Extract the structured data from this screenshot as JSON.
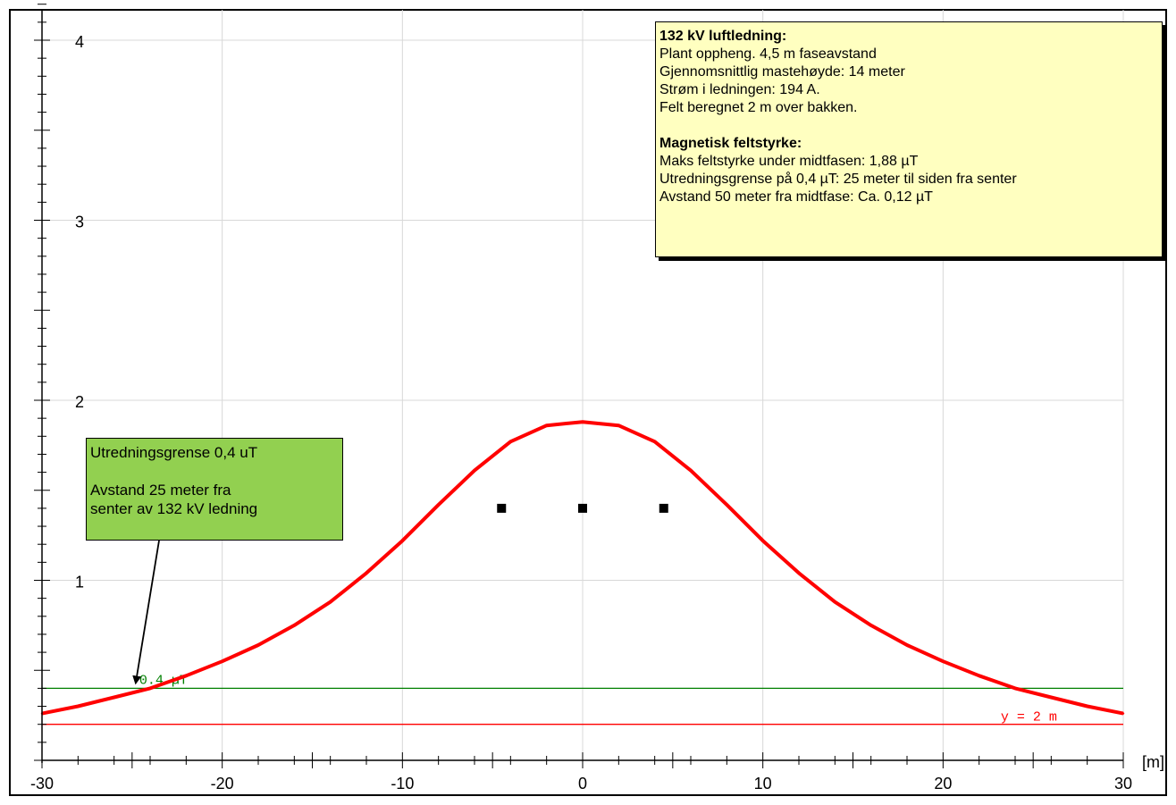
{
  "chart_data": {
    "type": "line",
    "title": "",
    "xlabel": "",
    "ylabel": "",
    "x_unit_label": "[m]",
    "xlim": [
      -30,
      30
    ],
    "ylim": [
      0,
      4.2
    ],
    "x_ticks": [
      -30,
      -20,
      -10,
      0,
      10,
      20,
      30
    ],
    "y_ticks": [
      1,
      2,
      3,
      4
    ],
    "grid": true,
    "series": [
      {
        "name": "",
        "color": "#ff0000",
        "x": [
          -30,
          -28,
          -26,
          -24,
          -22,
          -20,
          -18,
          -16,
          -14,
          -12,
          -10,
          -8,
          -6,
          -4,
          -2,
          0,
          2,
          4,
          6,
          8,
          10,
          12,
          14,
          16,
          18,
          20,
          22,
          24,
          26,
          28,
          30
        ],
        "y": [
          0.26,
          0.3,
          0.35,
          0.4,
          0.47,
          0.55,
          0.64,
          0.75,
          0.88,
          1.04,
          1.22,
          1.42,
          1.61,
          1.77,
          1.86,
          1.88,
          1.86,
          1.77,
          1.61,
          1.42,
          1.22,
          1.04,
          0.88,
          0.75,
          0.64,
          0.55,
          0.47,
          0.4,
          0.35,
          0.3,
          0.26
        ]
      }
    ],
    "reference_lines": [
      {
        "value": 0.4,
        "label": "0.4 µT",
        "color": "#008000"
      },
      {
        "value": 0.2,
        "label": "y = 2 m",
        "color": "#ff0000"
      }
    ],
    "conductor_markers": {
      "x": [
        -4.5,
        0,
        4.5
      ],
      "y": 1.4
    }
  },
  "info_box": {
    "heading1": "132 kV luftledning:",
    "line1": "Plant oppheng. 4,5 m faseavstand",
    "line2": "Gjennomsnittlig mastehøyde: 14 meter",
    "line3": "Strøm i ledningen: 194 A.",
    "line4": "Felt beregnet 2 m over bakken.",
    "heading2": "Magnetisk feltstyrke:",
    "line5": "Maks feltstyrke under midtfasen: 1,88 µT",
    "line6": "Utredningsgrense på 0,4 µT: 25 meter til siden fra senter",
    "line7": "Avstand 50 meter fra midtfase: Ca. 0,12 µT"
  },
  "callout": {
    "line1": "Utredningsgrense 0,4 uT",
    "line2": "Avstand 25 meter fra",
    "line3": "senter av 132 kV ledning"
  }
}
